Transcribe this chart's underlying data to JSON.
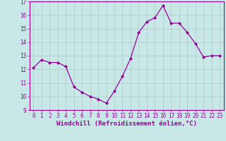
{
  "x": [
    0,
    1,
    2,
    3,
    4,
    5,
    6,
    7,
    8,
    9,
    10,
    11,
    12,
    13,
    14,
    15,
    16,
    17,
    18,
    19,
    20,
    21,
    22,
    23
  ],
  "y": [
    12.1,
    12.7,
    12.5,
    12.5,
    12.2,
    10.7,
    10.3,
    10.0,
    9.8,
    9.5,
    10.4,
    11.5,
    12.8,
    14.7,
    15.5,
    15.8,
    16.7,
    15.4,
    15.4,
    14.7,
    13.9,
    12.9,
    13.0,
    13.0
  ],
  "line_color": "#990099",
  "marker": "D",
  "markersize": 2,
  "linewidth": 0.9,
  "bg_color": "#c8e8e8",
  "grid_color": "#b0c8c8",
  "xlabel": "Windchill (Refroidissement éolien,°C)",
  "ylim": [
    9,
    17
  ],
  "xlim": [
    -0.5,
    23.5
  ],
  "yticks": [
    9,
    10,
    11,
    12,
    13,
    14,
    15,
    16,
    17
  ],
  "xticks": [
    0,
    1,
    2,
    3,
    4,
    5,
    6,
    7,
    8,
    9,
    10,
    11,
    12,
    13,
    14,
    15,
    16,
    17,
    18,
    19,
    20,
    21,
    22,
    23
  ],
  "tick_fontsize": 5.5,
  "xlabel_fontsize": 6.5,
  "tick_color": "#990099",
  "label_color": "#990099",
  "spine_color": "#990099"
}
